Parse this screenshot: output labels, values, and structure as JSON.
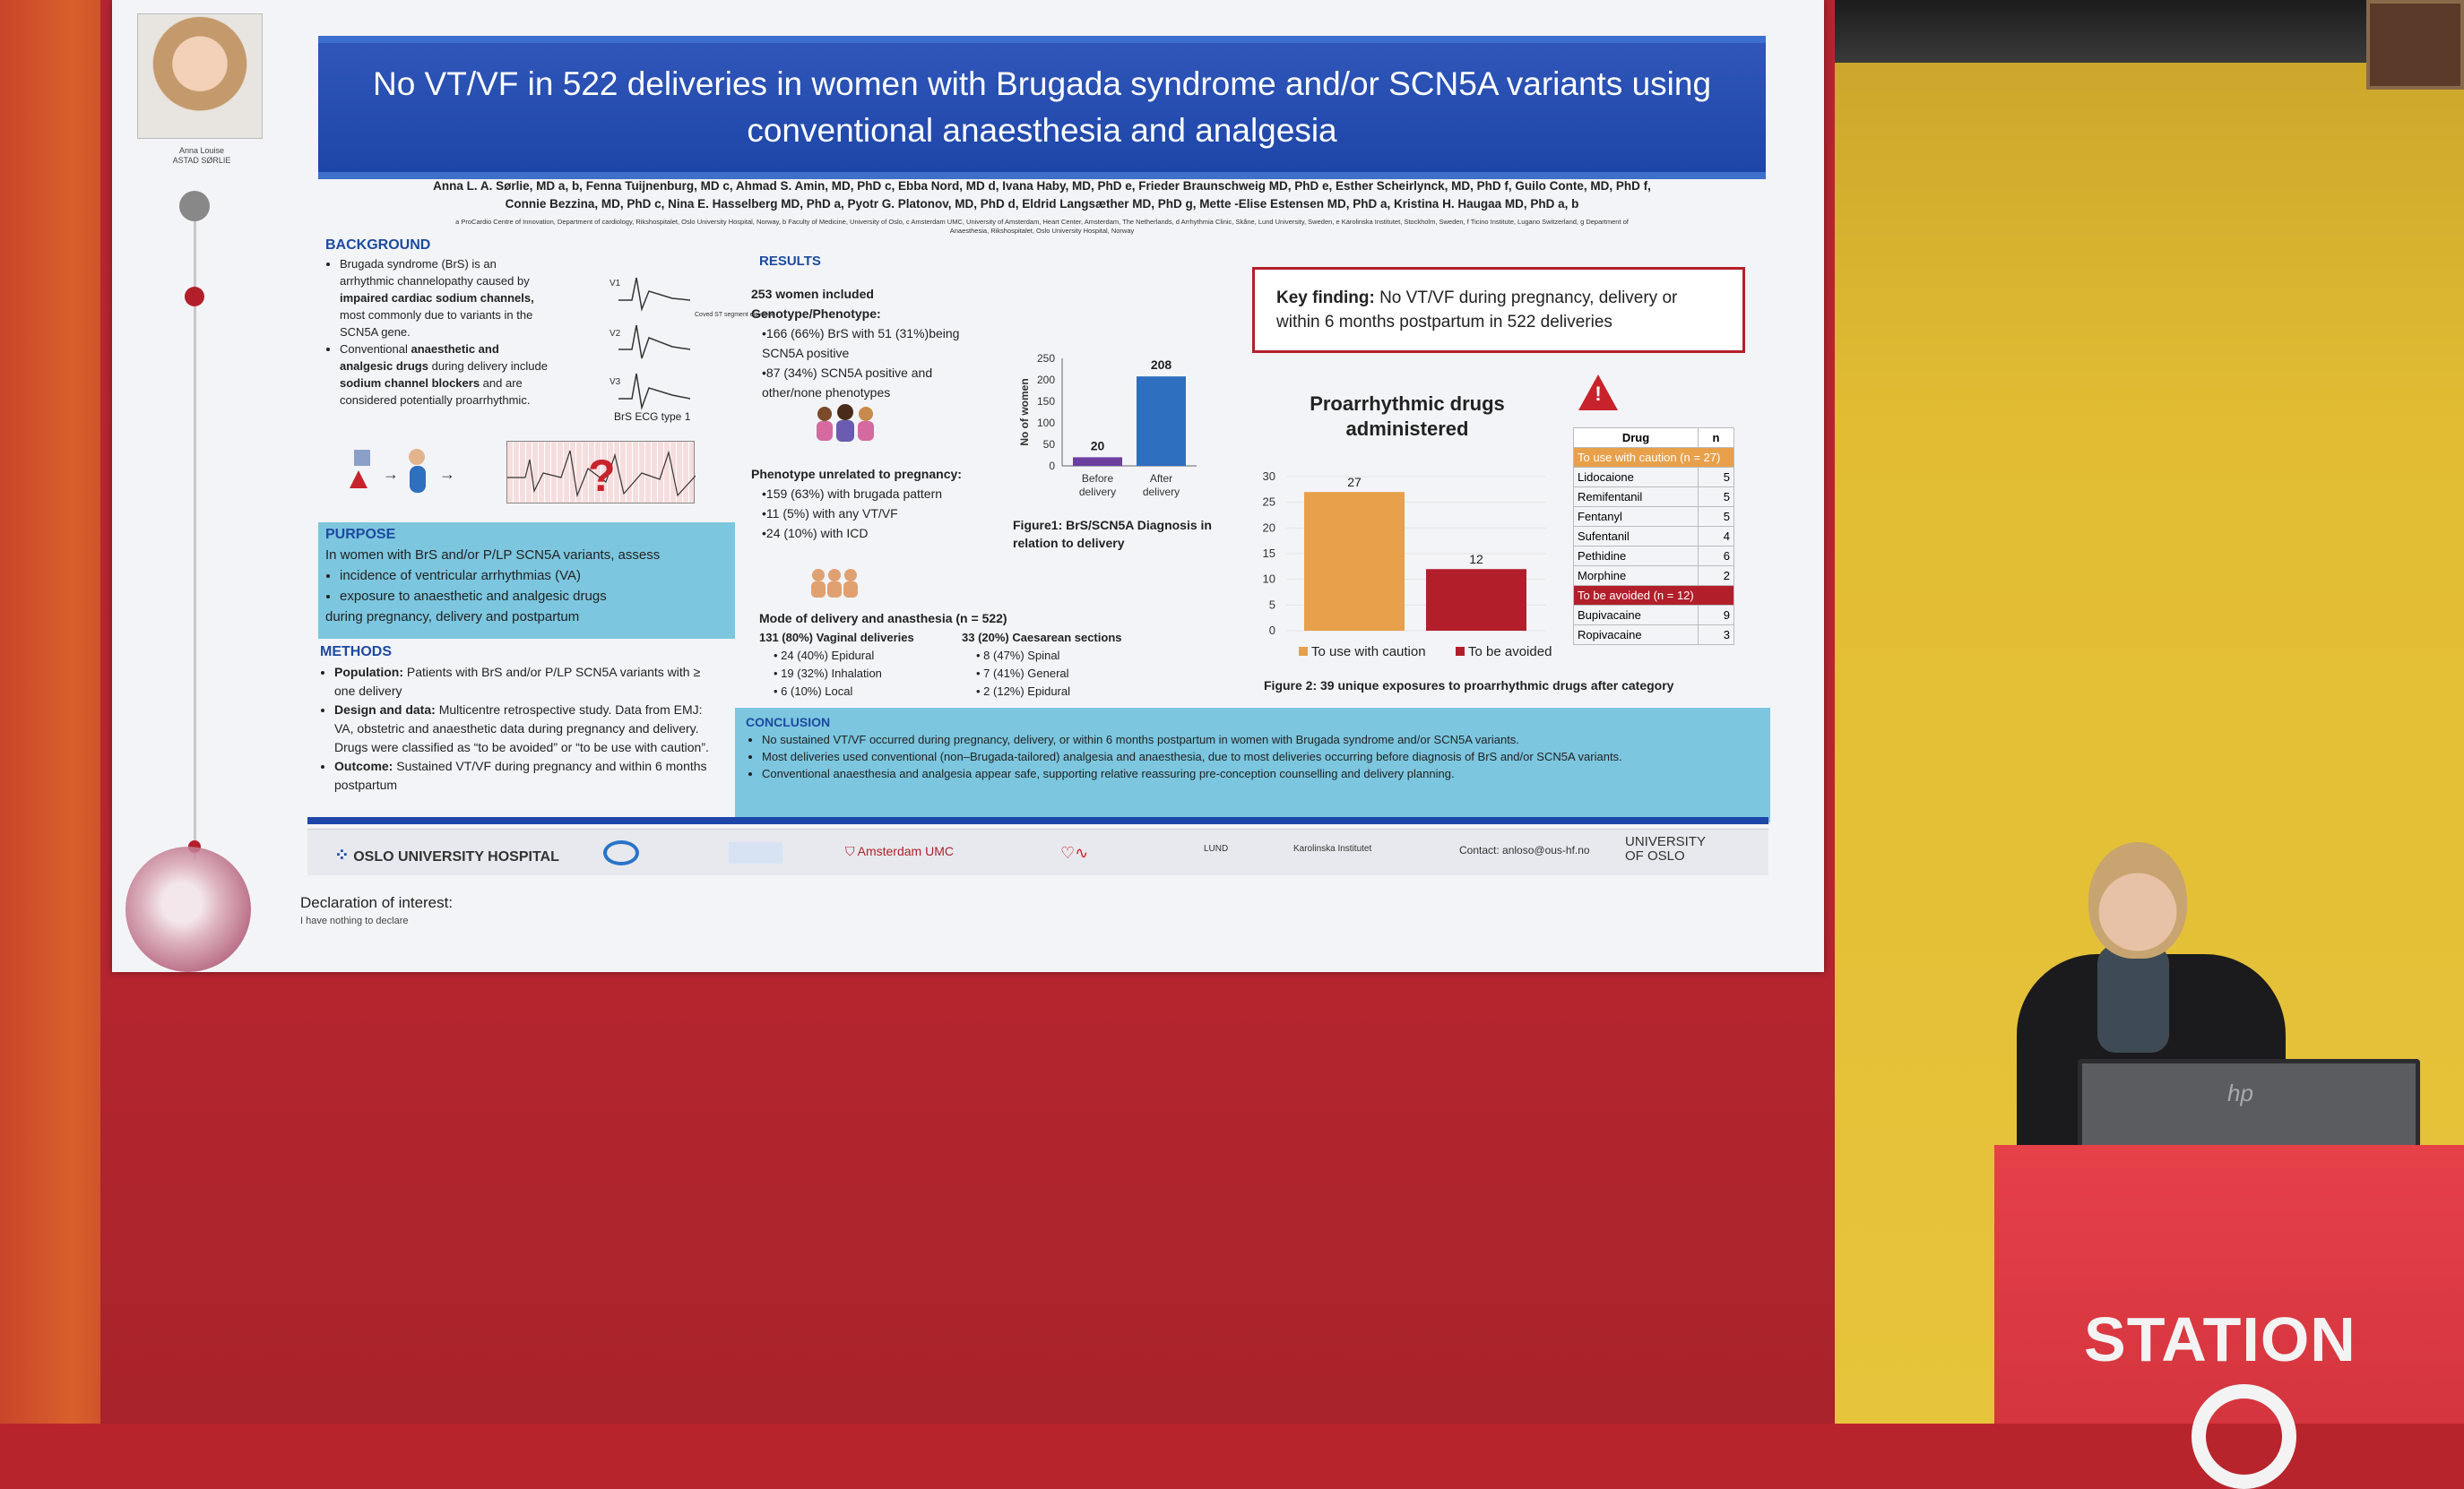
{
  "poster": {
    "title_line1": "No VT/VF in 522 deliveries in women with Brugada syndrome and/or SCN5A variants using",
    "title_line2": "conventional anaesthesia and analgesia",
    "photo_caption_1": "Anna Louise",
    "photo_caption_2": "ASTAD SØRLIE",
    "authors_line1": "Anna L. A. Sørlie, MD a, b, Fenna Tuijnenburg, MD c, Ahmad S. Amin, MD, PhD c, Ebba Nord, MD d, Ivana Haby, MD, PhD e, Frieder Braunschweig MD, PhD e, Esther Scheirlynck, MD, PhD f, Guilo Conte, MD, PhD f,",
    "authors_line2": "Connie Bezzina, MD, PhD c, Nina E. Hasselberg MD, PhD a, Pyotr G. Platonov, MD, PhD d, Eldrid Langsæther MD, PhD g, Mette -Elise Estensen MD, PhD a, Kristina H. Haugaa MD, PhD a, b",
    "affiliations_1": "a ProCardio Centre of Innovation, Department of cardiology, Rikshospitalet, Oslo University Hospital, Norway, b Faculty of Medicine, University of Oslo, c Amsterdam UMC, University of Amsterdam, Heart Center, Amsterdam, The Netherlands, d Arrhythmia Clinic, Skåne, Lund University, Sweden, e Karolinska Institutet, Stockholm, Sweden, f Ticino Institute, Lugano Switzerland, g Department of",
    "affiliations_2": "Anaesthesia, Rikshospitalet, Oslo University Hospital, Norway",
    "background": {
      "heading": "BACKGROUND",
      "b1_pre": "Brugada syndrome (BrS) is an arrhythmic channelopathy caused by",
      "b1_bold": "impaired cardiac sodium channels,",
      "b1_post": "most commonly due to variants in the SCN5A gene.",
      "b2_pre": "Conventional",
      "b2_bold1": "anaesthetic and analgesic drugs",
      "b2_mid": "during delivery include",
      "b2_bold2": "sodium channel blockers",
      "b2_post": "and are considered potentially proarrhythmic.",
      "ecg_caption": "BrS ECG type 1",
      "ecg_leads": [
        "V1",
        "V2",
        "V3"
      ],
      "ecg_note": "Coved ST segment elevation"
    },
    "purpose": {
      "heading": "PURPOSE",
      "intro": "In women with BrS and/or P/LP SCN5A variants, assess",
      "items": [
        "incidence of ventricular arrhythmias (VA)",
        "exposure to anaesthetic and analgesic drugs"
      ],
      "tail": "during pregnancy, delivery and postpartum"
    },
    "methods": {
      "heading": "METHODS",
      "m1_label": "Population:",
      "m1_text": "Patients with BrS and/or P/LP SCN5A variants with ≥ one delivery",
      "m2_label": "Design and data:",
      "m2_text": "Multicentre retrospective study. Data from EMJ: VA, obstetric and anaesthetic data during pregnancy and delivery. Drugs were classified as “to be avoided” or “to be use with caution”.",
      "m3_label": "Outcome:",
      "m3_text": "Sustained VT/VF during pregnancy and within 6 months postpartum"
    },
    "results": {
      "heading": "RESULTS",
      "included": "253 women included",
      "geno_heading": "Genotype/Phenotype:",
      "geno_items": [
        "•166 (66%) BrS with 51 (31%)being SCN5A positive",
        "•87 (34%) SCN5A positive and other/none phenotypes"
      ],
      "pheno_heading": "Phenotype unrelated to pregnancy:",
      "pheno_items": [
        "•159 (63%)  with brugada pattern",
        "•11 (5%) with any VT/VF",
        "•24 (10%) with ICD"
      ],
      "mode_heading": "Mode of delivery and anasthesia (n = 522)",
      "vaginal_heading": "131 (80%) Vaginal deliveries",
      "vaginal_items": [
        "• 24 (40%) Epidural",
        "• 19 (32%) Inhalation",
        "• 6 (10%) Local"
      ],
      "caesarean_heading": "33 (20%) Caesarean sections",
      "caesarean_items": [
        "• 8 (47%) Spinal",
        "• 7 (41%) General",
        "• 2 (12%) Epidural"
      ]
    },
    "key_finding": {
      "label": "Key finding:",
      "text": "No VT/VF  during pregnancy, delivery or within 6 months postpartum in 522 deliveries"
    },
    "conclusion": {
      "heading": "CONCLUSION",
      "items": [
        "No sustained VT/VF occurred during pregnancy, delivery, or within 6 months postpartum in women with Brugada syndrome and/or SCN5A variants.",
        "Most deliveries used conventional (non–Brugada-tailored) analgesia and anaesthesia, due to most deliveries occurring before diagnosis of BrS and/or SCN5A variants.",
        "Conventional anaesthesia and analgesia appear safe, supporting relative reassuring pre-conception counselling and delivery planning."
      ]
    },
    "drug_table": {
      "header": [
        "Drug",
        "n"
      ],
      "caution_label": "To use with caution (n = 27)",
      "caution_rows": [
        [
          "Lidocaione",
          "5"
        ],
        [
          "Remifentanil",
          "5"
        ],
        [
          "Fentanyl",
          "5"
        ],
        [
          "Sufentanil",
          "4"
        ],
        [
          "Pethidine",
          "6"
        ],
        [
          "Morphine",
          "2"
        ]
      ],
      "avoid_label": "To be avoided (n = 12)",
      "avoid_rows": [
        [
          "Bupivacaine",
          "9"
        ],
        [
          "Ropivacaine",
          "3"
        ]
      ]
    },
    "logos": {
      "oslo": "OSLO UNIVERSITY HOSPITAL",
      "amsterdam": "Amsterdam UMC",
      "lund": "LUND",
      "karolinska": "Karolinska Institutet",
      "contact": "Contact: anloso@ous-hf.no",
      "uio_1": "UNIVERSITY",
      "uio_2": "OF OSLO"
    },
    "declaration": "Declaration of interest:",
    "declaration_sub": "I have nothing to declare",
    "colors": {
      "title_blue": "#1e46a8",
      "purpose_cyan": "#7cc6df",
      "caution_orange": "#e8a04a",
      "avoid_red": "#b21f2b",
      "bar_purple": "#6b3fa0",
      "bar_blue": "#2e6fc0"
    }
  },
  "scene": {
    "podium_label": "STATION",
    "monitor_brand": "hp"
  },
  "chart_data": [
    {
      "type": "bar",
      "categories": [
        "Before delivery",
        "After delivery"
      ],
      "values": [
        20,
        208
      ],
      "ylabel": "No of women",
      "ylim": [
        0,
        250
      ],
      "yticks": [
        0,
        50,
        100,
        150,
        200,
        250
      ],
      "caption": "Figure1: BrS/SCN5A Diagnosis in relation to delivery",
      "colors": [
        "#6b3fa0",
        "#2e6fc0"
      ]
    },
    {
      "type": "bar",
      "title": "Proarrhythmic drugs administered",
      "categories": [
        "To use with caution",
        "To be avoided"
      ],
      "values": [
        27,
        12
      ],
      "ylim": [
        0,
        30
      ],
      "yticks": [
        0,
        5,
        10,
        15,
        20,
        25,
        30
      ],
      "legend": [
        "To use with caution",
        "To be avoided"
      ],
      "caption": "Figure 2: 39 unique exposures to proarrhythmic drugs after category",
      "colors": [
        "#e8a04a",
        "#b21f2b"
      ]
    }
  ]
}
